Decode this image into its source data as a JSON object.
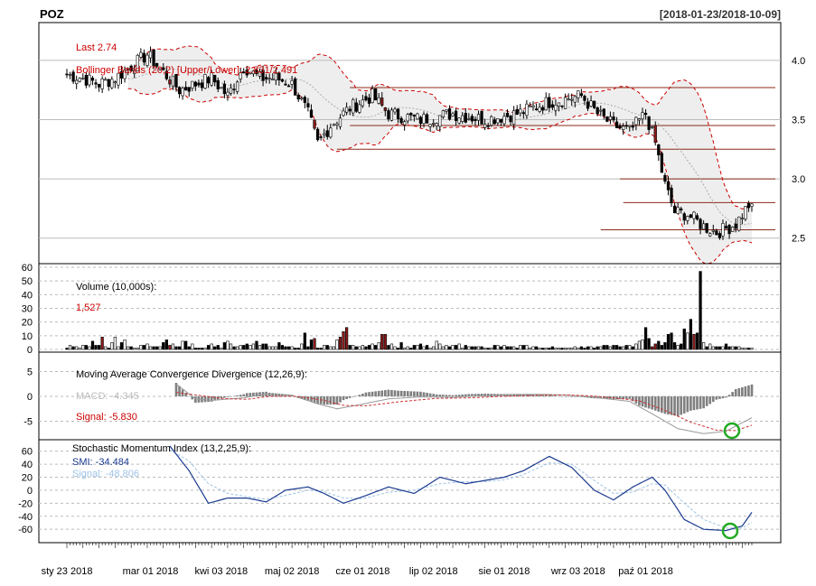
{
  "header": {
    "symbol": "POZ",
    "date_range": "[2018-01-23/2018-10-09]"
  },
  "colors": {
    "up": "#ffffff",
    "down": "#000000",
    "down_heavy": "#8b1a1a",
    "band_fill": "#eeeeee",
    "band_line": "#cc0000",
    "red_text": "#cc0000",
    "smi": "#1a3a8f",
    "smi_signal": "#9ec3e6",
    "hist": "#808080",
    "green_circle": "#22aa22"
  },
  "chart_data": [
    {
      "type": "candlestick",
      "name": "price",
      "last_label": "Last 2.74",
      "bb_label": "Bollinger Bands (20,2) [Upper/Lower]: 2.831/2.491",
      "y_ticks": [
        "2.5",
        "3.0",
        "3.5",
        "4.0"
      ],
      "ylim": [
        2.3,
        4.25
      ],
      "x_ticks": [
        "sty 23 2018",
        "mar 01 2018",
        "kwi 03 2018",
        "maj 02 2018",
        "cze 01 2018",
        "lip 02 2018",
        "sie 01 2018",
        "wrz 03 2018",
        "paź 01 2018"
      ],
      "close_anchors": [
        [
          0,
          3.88
        ],
        [
          5,
          3.85
        ],
        [
          10,
          3.8
        ],
        [
          15,
          3.85
        ],
        [
          20,
          3.95
        ],
        [
          25,
          4.05
        ],
        [
          30,
          3.9
        ],
        [
          35,
          3.75
        ],
        [
          40,
          3.8
        ],
        [
          45,
          3.85
        ],
        [
          50,
          3.7
        ],
        [
          55,
          3.95
        ],
        [
          60,
          3.85
        ],
        [
          65,
          3.85
        ],
        [
          70,
          3.8
        ],
        [
          75,
          3.55
        ],
        [
          78,
          3.3
        ],
        [
          82,
          3.45
        ],
        [
          88,
          3.6
        ],
        [
          95,
          3.7
        ],
        [
          100,
          3.55
        ],
        [
          110,
          3.5
        ],
        [
          120,
          3.55
        ],
        [
          130,
          3.5
        ],
        [
          140,
          3.55
        ],
        [
          150,
          3.65
        ],
        [
          160,
          3.7
        ],
        [
          165,
          3.55
        ],
        [
          170,
          3.45
        ],
        [
          175,
          3.4
        ],
        [
          180,
          3.55
        ],
        [
          183,
          3.3
        ],
        [
          186,
          2.95
        ],
        [
          189,
          2.72
        ],
        [
          193,
          2.7
        ],
        [
          198,
          2.6
        ],
        [
          202,
          2.55
        ],
        [
          205,
          2.58
        ],
        [
          208,
          2.62
        ],
        [
          212,
          2.78
        ],
        [
          213,
          2.74
        ]
      ],
      "support_lines": [
        {
          "price": 3.77,
          "from_index": 88
        },
        {
          "price": 3.45,
          "from_index": 88
        },
        {
          "price": 3.25,
          "from_index": 84
        },
        {
          "price": 3.0,
          "from_index": 172
        },
        {
          "price": 2.8,
          "from_index": 173
        },
        {
          "price": 2.57,
          "from_index": 166
        }
      ]
    },
    {
      "type": "bar",
      "name": "volume",
      "label": "Volume (10,000s):",
      "value_label": "1,527",
      "y_ticks": [
        "0",
        "10",
        "20",
        "30",
        "40",
        "50",
        "60"
      ],
      "ylim": [
        0,
        60
      ],
      "values": [
        1,
        3,
        2,
        2,
        1,
        3,
        3,
        2,
        6,
        3,
        3,
        9,
        2,
        1,
        5,
        9,
        2,
        5,
        7,
        2,
        2,
        1,
        1,
        3,
        3,
        4,
        2,
        2,
        2,
        2,
        5,
        7,
        3,
        4,
        2,
        2,
        6,
        6,
        2,
        4,
        1,
        1,
        1,
        1,
        3,
        4,
        2,
        3,
        1,
        5,
        6,
        4,
        2,
        2,
        3,
        3,
        4,
        3,
        4,
        6,
        3,
        4,
        4,
        2,
        2,
        2,
        5,
        3,
        2,
        2,
        2,
        1,
        1,
        4,
        12,
        2,
        7,
        8,
        1,
        1,
        3,
        3,
        2,
        2,
        7,
        9,
        13,
        16,
        3,
        3,
        2,
        2,
        3,
        2,
        3,
        4,
        3,
        5,
        11,
        11,
        3,
        4,
        2,
        1,
        5,
        1,
        2,
        1,
        3,
        3,
        4,
        2,
        3,
        1,
        2,
        6,
        4,
        2,
        3,
        2,
        3,
        3,
        4,
        1,
        3,
        2,
        2,
        2,
        2,
        2,
        1,
        1,
        1,
        3,
        3,
        2,
        3,
        2,
        2,
        2,
        1,
        3,
        3,
        3,
        1,
        2,
        2,
        1,
        1,
        1,
        1,
        2,
        1,
        1,
        1,
        1,
        1,
        1,
        2,
        1,
        2,
        1,
        2,
        2,
        1,
        2,
        2,
        3,
        3,
        2,
        3,
        3,
        2,
        2,
        3,
        3,
        2,
        4,
        6,
        7,
        16,
        8,
        2,
        4,
        6,
        3,
        5,
        11,
        12,
        5,
        3,
        4,
        15,
        12,
        22,
        11,
        12,
        57,
        5,
        2,
        4,
        2,
        2,
        2,
        2,
        4,
        2,
        2,
        2,
        2,
        1,
        1,
        1,
        1
      ],
      "highlight_indices": [
        11,
        32,
        77,
        85,
        86,
        87,
        98,
        99,
        182,
        183,
        195
      ]
    },
    {
      "type": "bar+line",
      "name": "macd",
      "label": "Moving Average Convergence Divergence (12,26,9):",
      "macd_label": "MACD: -4.345",
      "signal_label": "Signal: -5.830",
      "y_ticks": [
        "-5",
        "0",
        "5"
      ],
      "ylim": [
        -8,
        8
      ],
      "macd_anchors": [
        [
          34,
          2.5
        ],
        [
          40,
          -0.5
        ],
        [
          45,
          -0.8
        ],
        [
          55,
          -0.3
        ],
        [
          62,
          0.5
        ],
        [
          70,
          0.2
        ],
        [
          78,
          -1.5
        ],
        [
          84,
          -2.5
        ],
        [
          90,
          -1.8
        ],
        [
          100,
          -0.5
        ],
        [
          110,
          -0.1
        ],
        [
          120,
          -0.2
        ],
        [
          130,
          0.2
        ],
        [
          140,
          0.4
        ],
        [
          150,
          0.4
        ],
        [
          160,
          0.1
        ],
        [
          168,
          -0.5
        ],
        [
          175,
          -1.0
        ],
        [
          182,
          -3.5
        ],
        [
          190,
          -6.5
        ],
        [
          198,
          -7.5
        ],
        [
          205,
          -7.0
        ],
        [
          213,
          -4.3
        ]
      ],
      "signal_anchors": [
        [
          34,
          0.8
        ],
        [
          40,
          0.3
        ],
        [
          48,
          -0.4
        ],
        [
          56,
          -0.6
        ],
        [
          63,
          0.0
        ],
        [
          72,
          0.0
        ],
        [
          80,
          -0.8
        ],
        [
          86,
          -1.8
        ],
        [
          93,
          -1.9
        ],
        [
          103,
          -1.1
        ],
        [
          115,
          -0.4
        ],
        [
          125,
          -0.3
        ],
        [
          135,
          0.0
        ],
        [
          145,
          0.2
        ],
        [
          155,
          0.3
        ],
        [
          163,
          0.1
        ],
        [
          170,
          -0.3
        ],
        [
          178,
          -0.9
        ],
        [
          186,
          -2.8
        ],
        [
          194,
          -5.2
        ],
        [
          202,
          -6.8
        ],
        [
          208,
          -6.9
        ],
        [
          213,
          -5.8
        ]
      ]
    },
    {
      "type": "line",
      "name": "smi",
      "label": "Stochastic Momentum Index (13,2,25,9):",
      "smi_label": "SMI: -34.484",
      "signal_label": "Signal: -48.806",
      "y_ticks": [
        "-60",
        "-40",
        "-20",
        "0",
        "20",
        "40",
        "60"
      ],
      "ylim": [
        -75,
        72
      ],
      "smi_anchors": [
        [
          32,
          68
        ],
        [
          38,
          30
        ],
        [
          44,
          -20
        ],
        [
          50,
          -12
        ],
        [
          56,
          -12
        ],
        [
          62,
          -18
        ],
        [
          68,
          0
        ],
        [
          75,
          5
        ],
        [
          80,
          -5
        ],
        [
          86,
          -20
        ],
        [
          92,
          -10
        ],
        [
          100,
          5
        ],
        [
          108,
          -5
        ],
        [
          116,
          20
        ],
        [
          124,
          10
        ],
        [
          130,
          15
        ],
        [
          136,
          20
        ],
        [
          142,
          30
        ],
        [
          150,
          52
        ],
        [
          157,
          35
        ],
        [
          164,
          0
        ],
        [
          170,
          -15
        ],
        [
          176,
          5
        ],
        [
          182,
          20
        ],
        [
          186,
          0
        ],
        [
          192,
          -45
        ],
        [
          198,
          -60
        ],
        [
          205,
          -62
        ],
        [
          210,
          -55
        ],
        [
          213,
          -34
        ]
      ],
      "signal_anchors": [
        [
          32,
          62
        ],
        [
          38,
          45
        ],
        [
          44,
          10
        ],
        [
          50,
          -5
        ],
        [
          56,
          -10
        ],
        [
          62,
          -14
        ],
        [
          68,
          -8
        ],
        [
          75,
          0
        ],
        [
          80,
          -2
        ],
        [
          86,
          -12
        ],
        [
          92,
          -13
        ],
        [
          100,
          -3
        ],
        [
          108,
          0
        ],
        [
          116,
          10
        ],
        [
          124,
          13
        ],
        [
          130,
          13
        ],
        [
          136,
          16
        ],
        [
          142,
          24
        ],
        [
          150,
          42
        ],
        [
          157,
          40
        ],
        [
          164,
          15
        ],
        [
          170,
          -5
        ],
        [
          176,
          -3
        ],
        [
          182,
          10
        ],
        [
          186,
          8
        ],
        [
          192,
          -20
        ],
        [
          198,
          -45
        ],
        [
          205,
          -58
        ],
        [
          210,
          -58
        ],
        [
          213,
          -49
        ]
      ]
    }
  ]
}
